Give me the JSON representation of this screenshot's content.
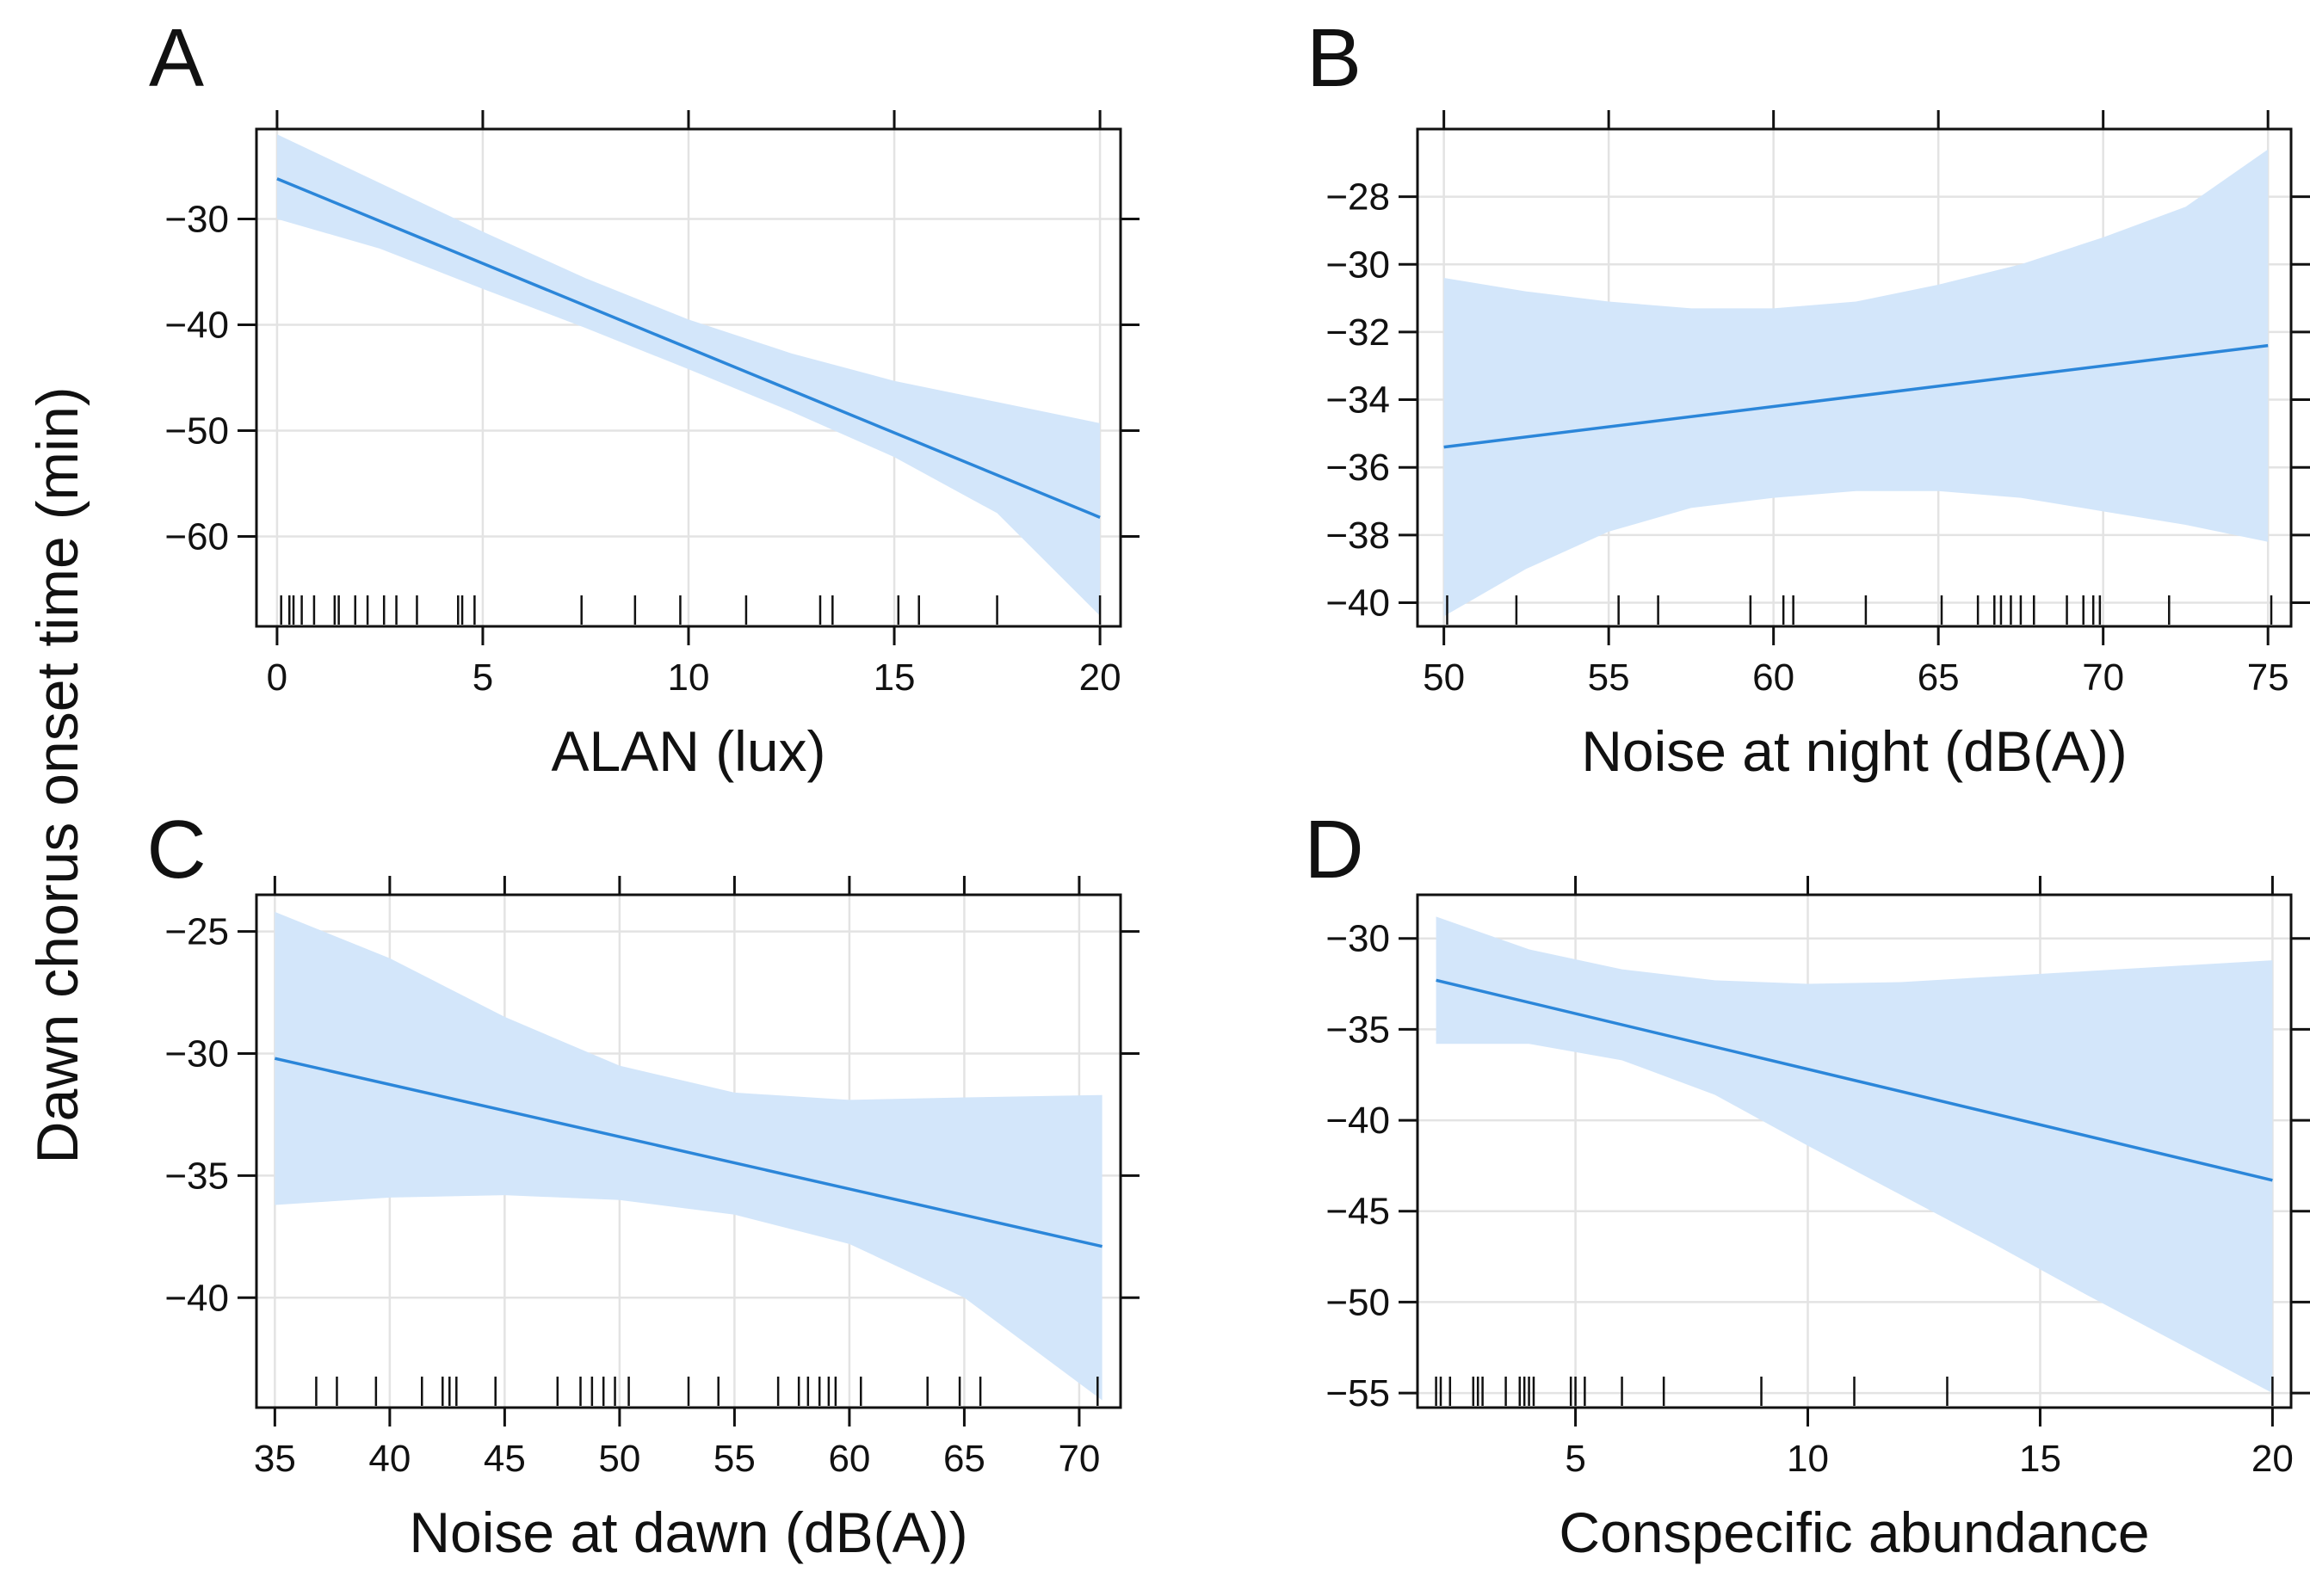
{
  "figure": {
    "shared_ylabel": "Dawn chorus onset time (min)"
  },
  "colors": {
    "line": "#2b86d9",
    "band": "#d3e6fa",
    "grid": "#e3e3e3",
    "axis": "#111111",
    "rug": "#111111"
  },
  "chart_data": [
    {
      "panel": "A",
      "type": "line",
      "xlabel": "ALAN (lux)",
      "ylabel": "Dawn chorus onset time (min)",
      "xlim": [
        -0.5,
        20.5
      ],
      "ylim": [
        -68.5,
        -21.5
      ],
      "xticks": [
        0,
        5,
        10,
        15,
        20
      ],
      "xtick_labels": [
        "0",
        "5",
        "10",
        "15",
        "20"
      ],
      "yticks": [
        -30,
        -40,
        -50,
        -60
      ],
      "ytick_labels": [
        "−30",
        "−40",
        "−50",
        "−60"
      ],
      "line": {
        "x": [
          0,
          20
        ],
        "y": [
          -26.2,
          -58.2
        ]
      },
      "band": {
        "x": [
          0,
          2.5,
          5,
          7.5,
          10,
          12.5,
          15,
          17.5,
          20
        ],
        "lower": [
          -30.0,
          -32.8,
          -36.6,
          -40.3,
          -44.2,
          -48.2,
          -52.5,
          -57.8,
          -67.5
        ],
        "upper": [
          -22.0,
          -26.6,
          -31.2,
          -35.6,
          -39.5,
          -42.7,
          -45.3,
          -47.3,
          -49.3
        ]
      },
      "rug": [
        0.1,
        0.3,
        0.4,
        0.6,
        0.9,
        1.4,
        1.5,
        1.9,
        2.2,
        2.6,
        2.9,
        3.4,
        4.4,
        4.5,
        4.8,
        7.4,
        8.7,
        9.8,
        11.4,
        13.2,
        13.5,
        15.1,
        15.6,
        17.5,
        20.0
      ]
    },
    {
      "panel": "B",
      "type": "line",
      "xlabel": "Noise at night (dB(A))",
      "ylabel": "Dawn chorus onset time (min)",
      "xlim": [
        49.2,
        75.7
      ],
      "ylim": [
        -40.7,
        -26.0
      ],
      "xticks": [
        50,
        55,
        60,
        65,
        70,
        75
      ],
      "xtick_labels": [
        "50",
        "55",
        "60",
        "65",
        "70",
        "75"
      ],
      "yticks": [
        -28,
        -30,
        -32,
        -34,
        -36,
        -38,
        -40
      ],
      "ytick_labels": [
        "−28",
        "−30",
        "−32",
        "−34",
        "−36",
        "−38",
        "−40"
      ],
      "line": {
        "x": [
          50,
          75
        ],
        "y": [
          -35.4,
          -32.4
        ]
      },
      "band": {
        "x": [
          50,
          52.5,
          55,
          57.5,
          60,
          62.5,
          65,
          67.5,
          70,
          72.5,
          75
        ],
        "lower": [
          -40.4,
          -39.0,
          -37.9,
          -37.2,
          -36.9,
          -36.7,
          -36.7,
          -36.9,
          -37.3,
          -37.7,
          -38.2
        ],
        "upper": [
          -30.4,
          -30.8,
          -31.1,
          -31.3,
          -31.3,
          -31.1,
          -30.6,
          -30.0,
          -29.2,
          -28.3,
          -26.6
        ]
      },
      "rug": [
        50.1,
        52.2,
        55.3,
        56.5,
        59.3,
        60.3,
        60.6,
        62.8,
        65.1,
        66.2,
        66.7,
        66.9,
        67.2,
        67.5,
        67.9,
        68.9,
        69.4,
        69.7,
        69.9,
        72.0,
        75.1
      ]
    },
    {
      "panel": "C",
      "type": "line",
      "xlabel": "Noise at dawn (dB(A))",
      "ylabel": "Dawn chorus onset time (min)",
      "xlim": [
        34.2,
        71.8
      ],
      "ylim": [
        -44.5,
        -23.5
      ],
      "xticks": [
        35,
        40,
        45,
        50,
        55,
        60,
        65,
        70
      ],
      "xtick_labels": [
        "35",
        "40",
        "45",
        "50",
        "55",
        "60",
        "65",
        "70"
      ],
      "yticks": [
        -25,
        -30,
        -35,
        -40
      ],
      "ytick_labels": [
        "−25",
        "−30",
        "−35",
        "−40"
      ],
      "line": {
        "x": [
          35,
          71
        ],
        "y": [
          -30.2,
          -37.9
        ]
      },
      "band": {
        "x": [
          35,
          40,
          45,
          50,
          55,
          60,
          65,
          71
        ],
        "lower": [
          -36.2,
          -35.9,
          -35.8,
          -36.0,
          -36.6,
          -37.8,
          -40.0,
          -44.2
        ],
        "upper": [
          -24.2,
          -26.1,
          -28.5,
          -30.5,
          -31.6,
          -31.9,
          -31.8,
          -31.7
        ]
      },
      "rug": [
        36.8,
        37.7,
        39.4,
        41.4,
        42.3,
        42.6,
        42.9,
        44.6,
        47.3,
        48.3,
        48.8,
        49.3,
        49.8,
        50.4,
        53.0,
        54.3,
        56.9,
        57.8,
        58.2,
        58.7,
        59.1,
        59.4,
        60.5,
        63.4,
        64.8,
        65.7,
        70.8
      ]
    },
    {
      "panel": "D",
      "type": "line",
      "xlabel": "Conspecific abundance",
      "ylabel": "Dawn chorus onset time (min)",
      "xlim": [
        1.6,
        20.4
      ],
      "ylim": [
        -55.8,
        -27.6
      ],
      "xticks": [
        5,
        10,
        15,
        20
      ],
      "xtick_labels": [
        "5",
        "10",
        "15",
        "20"
      ],
      "yticks": [
        -30,
        -35,
        -40,
        -45,
        -50,
        -55
      ],
      "ytick_labels": [
        "−30",
        "−35",
        "−40",
        "−45",
        "−50",
        "−55"
      ],
      "line": {
        "x": [
          2,
          20
        ],
        "y": [
          -32.3,
          -43.3
        ]
      },
      "band": {
        "x": [
          2,
          4,
          6,
          8,
          10,
          12,
          14,
          16,
          18,
          20
        ],
        "lower": [
          -35.8,
          -35.8,
          -36.7,
          -38.6,
          -41.4,
          -44.1,
          -46.8,
          -49.6,
          -52.3,
          -55.0
        ],
        "upper": [
          -28.8,
          -30.6,
          -31.7,
          -32.3,
          -32.5,
          -32.4,
          -32.1,
          -31.8,
          -31.5,
          -31.2
        ]
      },
      "rug": [
        2.0,
        2.1,
        2.3,
        2.8,
        2.9,
        3.0,
        3.5,
        3.8,
        3.9,
        4.0,
        4.1,
        4.9,
        5.0,
        5.2,
        6.0,
        6.9,
        9.0,
        11.0,
        13.0,
        20.0
      ]
    }
  ]
}
